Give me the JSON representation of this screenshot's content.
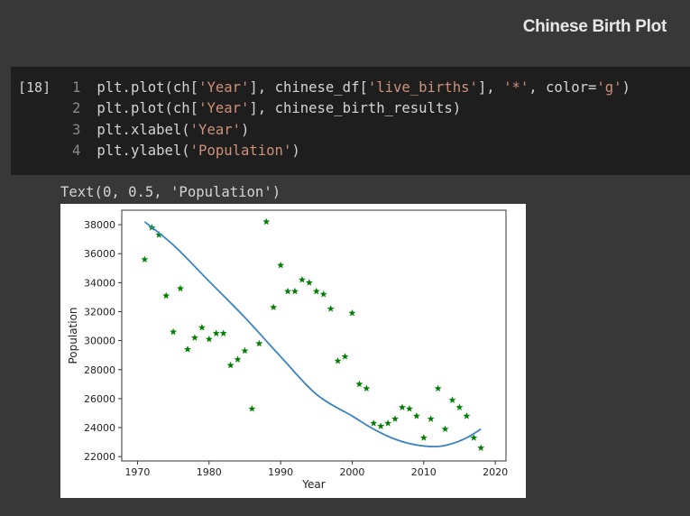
{
  "section_heading": "Chinese Birth Plot",
  "cell": {
    "exec_count": "[18]",
    "lines": [
      {
        "num": "1",
        "parts": [
          {
            "t": "plt.plot(ch[",
            "s": false
          },
          {
            "t": "'Year'",
            "s": true
          },
          {
            "t": "], chinese_df[",
            "s": false
          },
          {
            "t": "'live_births'",
            "s": true
          },
          {
            "t": "], ",
            "s": false
          },
          {
            "t": "'*'",
            "s": true
          },
          {
            "t": ", color=",
            "s": false
          },
          {
            "t": "'g'",
            "s": true
          },
          {
            "t": ")",
            "s": false
          }
        ]
      },
      {
        "num": "2",
        "parts": [
          {
            "t": "plt.plot(ch[",
            "s": false
          },
          {
            "t": "'Year'",
            "s": true
          },
          {
            "t": "], chinese_birth_results)",
            "s": false
          }
        ]
      },
      {
        "num": "3",
        "parts": [
          {
            "t": "plt.xlabel(",
            "s": false
          },
          {
            "t": "'Year'",
            "s": true
          },
          {
            "t": ")",
            "s": false
          }
        ]
      },
      {
        "num": "4",
        "parts": [
          {
            "t": "plt.ylabel(",
            "s": false
          },
          {
            "t": "'Population'",
            "s": true
          },
          {
            "t": ")",
            "s": false
          }
        ]
      }
    ]
  },
  "output_text": "Text(0, 0.5, 'Population')",
  "chart_data": {
    "type": "scatter",
    "xlabel": "Year",
    "ylabel": "Population",
    "xlim": [
      1967.8,
      2021.5
    ],
    "ylim": [
      21700,
      39000
    ],
    "xticks": [
      1970,
      1980,
      1990,
      2000,
      2010,
      2020
    ],
    "yticks": [
      22000,
      24000,
      26000,
      28000,
      30000,
      32000,
      34000,
      36000,
      38000
    ],
    "grid": false,
    "series": [
      {
        "kind": "scatter",
        "marker": "*",
        "color": "#008000",
        "x": [
          1971,
          1972,
          1973,
          1974,
          1975,
          1976,
          1977,
          1978,
          1979,
          1980,
          1981,
          1982,
          1983,
          1984,
          1985,
          1986,
          1987,
          1988,
          1989,
          1990,
          1991,
          1992,
          1993,
          1994,
          1995,
          1996,
          1997,
          1998,
          1999,
          2000,
          2001,
          2002,
          2003,
          2004,
          2005,
          2006,
          2007,
          2008,
          2009,
          2010,
          2011,
          2012,
          2013,
          2014,
          2015,
          2016,
          2017,
          2018
        ],
        "y": [
          35600,
          37800,
          37300,
          33100,
          30600,
          33600,
          29400,
          30200,
          30900,
          30100,
          30500,
          30500,
          28300,
          28700,
          29300,
          25300,
          29800,
          38200,
          32300,
          35200,
          33400,
          33400,
          34200,
          34000,
          33400,
          33200,
          32200,
          28600,
          28900,
          31900,
          27000,
          26700,
          24300,
          24100,
          24300,
          24600,
          25400,
          25300,
          24800,
          23300,
          24600,
          26700,
          23900,
          25900,
          25400,
          24800,
          23300,
          22600
        ]
      },
      {
        "kind": "line",
        "color": "#3a84c4",
        "x": [
          1971,
          1975,
          1980,
          1985,
          1990,
          1995,
          2000,
          2003,
          2006,
          2009,
          2012,
          2014,
          2016,
          2018
        ],
        "y": [
          38200,
          36600,
          34100,
          31600,
          28900,
          26300,
          24800,
          23900,
          23200,
          22800,
          22700,
          22900,
          23300,
          23900
        ]
      }
    ]
  }
}
